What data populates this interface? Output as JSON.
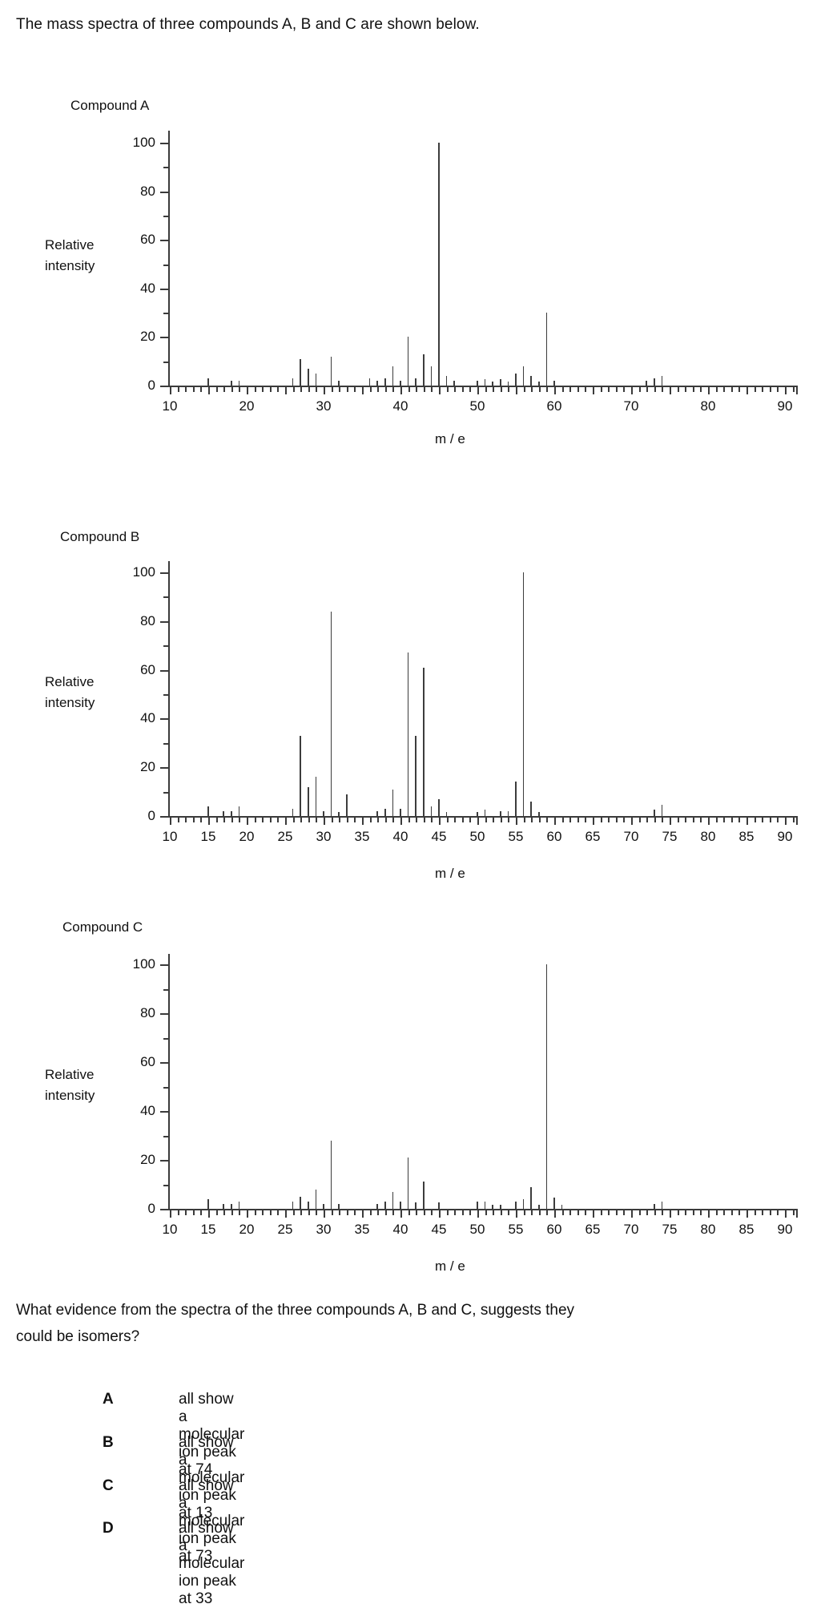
{
  "header": {
    "text": "The mass spectra of three compounds A, B and C are shown below."
  },
  "charts": [
    {
      "title": "Compound A",
      "ylabel_line1": "Relative",
      "ylabel_line2": "intensity",
      "xlabel": "m / e"
    },
    {
      "title": "Compound B",
      "ylabel_line1": "Relative",
      "ylabel_line2": "intensity",
      "xlabel": "m / e"
    },
    {
      "title": "Compound C",
      "ylabel_line1": "Relative",
      "ylabel_line2": "intensity",
      "xlabel": "m / e"
    }
  ],
  "chart_data": [
    {
      "type": "bar",
      "title": "Compound A",
      "xlabel": "m / e",
      "ylabel": "Relative intensity",
      "xlim": [
        10,
        90
      ],
      "ylim": [
        0,
        100
      ],
      "x_label_step": 10,
      "x_minor_step": 1,
      "y_label_step": 20,
      "y_minor_step": 10,
      "grid": false,
      "peaks": [
        [
          15,
          3
        ],
        [
          18,
          2
        ],
        [
          19,
          2
        ],
        [
          26,
          3
        ],
        [
          27,
          11
        ],
        [
          28,
          7
        ],
        [
          29,
          5
        ],
        [
          31,
          12
        ],
        [
          32,
          2
        ],
        [
          36,
          3
        ],
        [
          37,
          2
        ],
        [
          38,
          3
        ],
        [
          39,
          8
        ],
        [
          40,
          2
        ],
        [
          41,
          20
        ],
        [
          42,
          3
        ],
        [
          43,
          13
        ],
        [
          44,
          8
        ],
        [
          45,
          100
        ],
        [
          46,
          4
        ],
        [
          47,
          2
        ],
        [
          50,
          2
        ],
        [
          51,
          2.5
        ],
        [
          52,
          1.5
        ],
        [
          53,
          2.5
        ],
        [
          54,
          1.5
        ],
        [
          55,
          5
        ],
        [
          56,
          8
        ],
        [
          57,
          4
        ],
        [
          58,
          1.5
        ],
        [
          59,
          30
        ],
        [
          60,
          2
        ],
        [
          72,
          2
        ],
        [
          73,
          3
        ],
        [
          74,
          4
        ]
      ]
    },
    {
      "type": "bar",
      "title": "Compound B",
      "xlabel": "m / e",
      "ylabel": "Relative intensity",
      "xlim": [
        10,
        90
      ],
      "ylim": [
        0,
        100
      ],
      "x_label_step": 5,
      "x_minor_step": 1,
      "y_label_step": 20,
      "y_minor_step": 10,
      "grid": false,
      "peaks": [
        [
          15,
          4
        ],
        [
          17,
          2
        ],
        [
          18,
          2
        ],
        [
          19,
          4
        ],
        [
          26,
          3
        ],
        [
          27,
          33
        ],
        [
          28,
          12
        ],
        [
          29,
          16
        ],
        [
          30,
          2
        ],
        [
          31,
          84
        ],
        [
          32,
          1.5
        ],
        [
          33,
          9
        ],
        [
          37,
          2
        ],
        [
          38,
          3
        ],
        [
          39,
          11
        ],
        [
          40,
          3
        ],
        [
          41,
          67
        ],
        [
          42,
          33
        ],
        [
          43,
          61
        ],
        [
          44,
          4
        ],
        [
          45,
          7
        ],
        [
          46,
          1.5
        ],
        [
          50,
          1.5
        ],
        [
          51,
          2.5
        ],
        [
          53,
          2
        ],
        [
          54,
          2
        ],
        [
          55,
          14
        ],
        [
          56,
          100
        ],
        [
          57,
          6
        ],
        [
          58,
          1.5
        ],
        [
          73,
          2.5
        ],
        [
          74,
          4.5
        ]
      ]
    },
    {
      "type": "bar",
      "title": "Compound C",
      "xlabel": "m / e",
      "ylabel": "Relative intensity",
      "xlim": [
        10,
        90
      ],
      "ylim": [
        0,
        100
      ],
      "x_label_step": 5,
      "x_minor_step": 1,
      "y_label_step": 20,
      "y_minor_step": 10,
      "grid": false,
      "peaks": [
        [
          15,
          4
        ],
        [
          17,
          2
        ],
        [
          18,
          2
        ],
        [
          19,
          3
        ],
        [
          26,
          3
        ],
        [
          27,
          5
        ],
        [
          28,
          3
        ],
        [
          29,
          8
        ],
        [
          30,
          2
        ],
        [
          31,
          28
        ],
        [
          32,
          2
        ],
        [
          37,
          2
        ],
        [
          38,
          3
        ],
        [
          39,
          7
        ],
        [
          40,
          3
        ],
        [
          41,
          21
        ],
        [
          42,
          2.5
        ],
        [
          43,
          11
        ],
        [
          45,
          2.5
        ],
        [
          50,
          3
        ],
        [
          51,
          3
        ],
        [
          52,
          1.5
        ],
        [
          53,
          1.5
        ],
        [
          55,
          3
        ],
        [
          56,
          4
        ],
        [
          57,
          9
        ],
        [
          58,
          1.5
        ],
        [
          59,
          100
        ],
        [
          60,
          4.5
        ],
        [
          61,
          1.5
        ],
        [
          73,
          2
        ],
        [
          74,
          3
        ]
      ]
    }
  ],
  "question": {
    "line1": "What evidence from the spectra of the three compounds A, B and C, suggests they",
    "line2": "could be isomers?"
  },
  "options": [
    {
      "letter": "A",
      "text": "all show a molecular ion peak at 74"
    },
    {
      "letter": "B",
      "text": "all show a molecular ion peak at 13"
    },
    {
      "letter": "C",
      "text": "all show a molecular ion peak at 73"
    },
    {
      "letter": "D",
      "text": "all show a molecular ion peak at 33"
    }
  ],
  "colors": {
    "line": "#3b3b3b",
    "text": "#111111",
    "background": "#ffffff"
  }
}
